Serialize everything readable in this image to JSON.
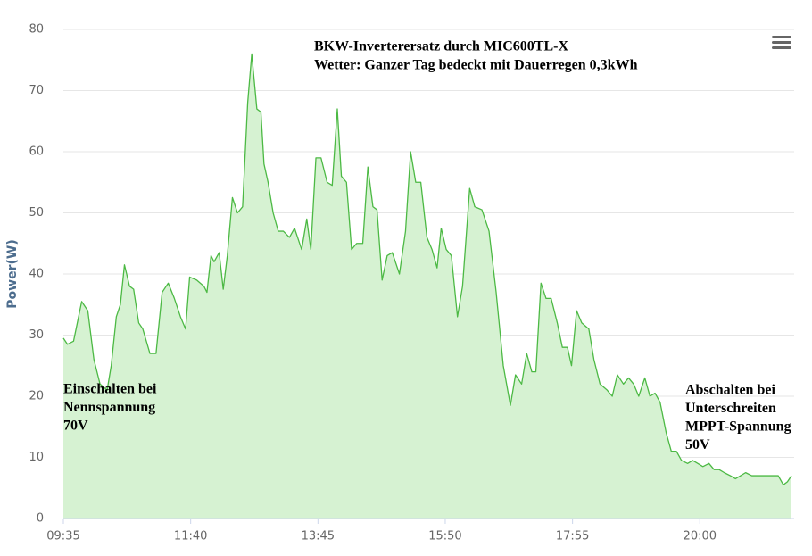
{
  "chart_data": {
    "type": "area",
    "title": [
      "BKW-Inverterersatz  durch MIC600TL-X",
      "Wetter: Ganzer Tag bedeckt mit Dauerregen 0,3kWh"
    ],
    "y_label": "Power(W)",
    "annotations": [
      {
        "lines": [
          "Einschalten bei",
          "Nennspannung",
          "70V"
        ]
      },
      {
        "lines": [
          "Abschalten bei",
          "Unterschreiten",
          "MPPT-Spannung",
          "50V"
        ]
      }
    ],
    "color": "#4cb944",
    "fill": "#d6f2d2",
    "grid": true,
    "ylim": [
      0,
      80
    ],
    "yticks": [
      0,
      10,
      20,
      30,
      40,
      50,
      60,
      70,
      80
    ],
    "xlim": [
      "09:35",
      "21:30"
    ],
    "xticks": [
      "09:35",
      "11:40",
      "13:45",
      "15:50",
      "17:55",
      "20:00"
    ],
    "x": [
      "09:35",
      "09:39",
      "09:45",
      "09:53",
      "09:59",
      "10:05",
      "10:11",
      "10:18",
      "10:22",
      "10:27",
      "10:31",
      "10:35",
      "10:40",
      "10:44",
      "10:49",
      "10:53",
      "11:00",
      "11:06",
      "11:12",
      "11:18",
      "11:24",
      "11:30",
      "11:35",
      "11:39",
      "11:46",
      "11:53",
      "11:56",
      "12:00",
      "12:03",
      "12:08",
      "12:12",
      "12:16",
      "12:21",
      "12:26",
      "12:31",
      "12:36",
      "12:40",
      "12:45",
      "12:49",
      "12:52",
      "12:56",
      "13:01",
      "13:06",
      "13:11",
      "13:17",
      "13:22",
      "13:25",
      "13:29",
      "13:34",
      "13:38",
      "13:43",
      "13:48",
      "13:54",
      "13:59",
      "14:04",
      "14:08",
      "14:13",
      "14:18",
      "14:23",
      "14:29",
      "14:34",
      "14:39",
      "14:43",
      "14:48",
      "14:53",
      "14:58",
      "15:05",
      "15:11",
      "15:16",
      "15:21",
      "15:26",
      "15:32",
      "15:37",
      "15:42",
      "15:46",
      "15:51",
      "15:56",
      "16:02",
      "16:07",
      "16:14",
      "16:19",
      "16:26",
      "16:33",
      "16:40",
      "16:47",
      "16:54",
      "16:59",
      "17:05",
      "17:10",
      "17:15",
      "17:19",
      "17:24",
      "17:29",
      "17:34",
      "17:40",
      "17:45",
      "17:50",
      "17:54",
      "17:59",
      "18:04",
      "18:11",
      "18:16",
      "18:22",
      "18:29",
      "18:34",
      "18:39",
      "18:45",
      "18:50",
      "18:55",
      "19:00",
      "19:06",
      "19:11",
      "19:16",
      "19:21",
      "19:27",
      "19:32",
      "19:37",
      "19:42",
      "19:48",
      "19:53",
      "19:58",
      "20:03",
      "20:09",
      "20:14",
      "20:19",
      "20:24",
      "20:30",
      "20:35",
      "20:40",
      "20:45",
      "20:51",
      "20:56",
      "21:01",
      "21:07",
      "21:12",
      "21:17",
      "21:22",
      "21:26",
      "21:30"
    ],
    "values": [
      29.5,
      28.5,
      29,
      35.5,
      34,
      26,
      22,
      21,
      25,
      33,
      35,
      41.5,
      38,
      37.5,
      32,
      31,
      27,
      27,
      37,
      38.5,
      36,
      33,
      31,
      39.5,
      39,
      38,
      37,
      43,
      42,
      43.5,
      37.5,
      43,
      52.5,
      50,
      51,
      68,
      76,
      67,
      66.5,
      58,
      55,
      50,
      47,
      47,
      46,
      47.5,
      46,
      44,
      49,
      44,
      59,
      59,
      55,
      54.5,
      67,
      56,
      55,
      44,
      45,
      45,
      57.5,
      51,
      50.5,
      39,
      43,
      43.5,
      40,
      47,
      60,
      55,
      55,
      46,
      44,
      41,
      47.5,
      44,
      43,
      33,
      38,
      54,
      51,
      50.5,
      47,
      37,
      25,
      18.5,
      23.5,
      22,
      27,
      24,
      24,
      38.5,
      36,
      36,
      32,
      28,
      28,
      25,
      34,
      32,
      31,
      26,
      22,
      21,
      20,
      23.5,
      22,
      23,
      22,
      20,
      23,
      20,
      20.5,
      19,
      14,
      11,
      11,
      9.5,
      9,
      9.5,
      9,
      8.5,
      9,
      8,
      8,
      7.5,
      7,
      6.5,
      7,
      7.5,
      7,
      7,
      7,
      7,
      7,
      7,
      5.5,
      6,
      7
    ]
  }
}
